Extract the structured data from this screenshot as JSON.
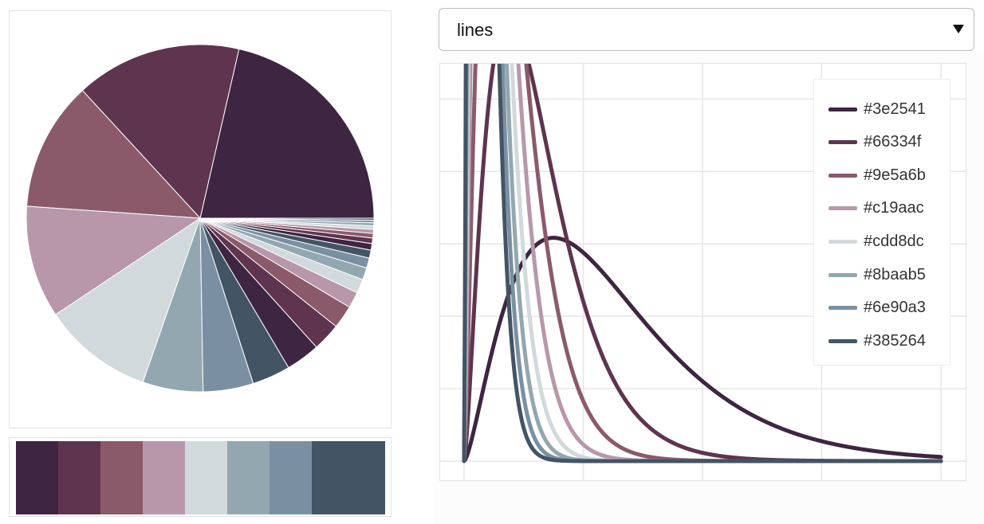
{
  "selector": {
    "value": "lines"
  },
  "palette": [
    "#3e2541",
    "#5e344e",
    "#8b5a6a",
    "#b897aa",
    "#d2d9dc",
    "#93a7b1",
    "#7a90a2",
    "#435464"
  ],
  "chart_data": [
    {
      "type": "pie",
      "title": "",
      "slice_colors": [
        "#3e2541",
        "#5e344e",
        "#8b5a6a",
        "#b897aa",
        "#d2d9dc",
        "#93a7b1",
        "#7a90a2",
        "#435464",
        "#3e2541",
        "#5e344e",
        "#8b5a6a",
        "#b897aa",
        "#d2d9dc",
        "#93a7b1",
        "#7a90a2",
        "#435464",
        "#3e2541",
        "#5e344e",
        "#8b5a6a",
        "#b897aa",
        "#d2d9dc",
        "#93a7b1",
        "#7a90a2",
        "#435464"
      ],
      "values": [
        22.9,
        16.5,
        12.9,
        11.2,
        11.0,
        6.0,
        5.0,
        3.8,
        3.4,
        2.8,
        2.3,
        1.6,
        1.4,
        1.2,
        1.0,
        0.8,
        0.65,
        0.55,
        0.45,
        0.4,
        0.35,
        0.3,
        0.25,
        0.2
      ]
    },
    {
      "type": "line",
      "title": "",
      "xlabel": "",
      "ylabel": "",
      "xlim": [
        0,
        4
      ],
      "ylim": [
        0,
        1.08
      ],
      "grid": true,
      "legend_position": "top-right",
      "series": [
        {
          "name": "#3e2541",
          "color": "#3e2541",
          "k": 2.5,
          "theta": 0.5
        },
        {
          "name": "#66334f",
          "color": "#5e344e",
          "k": 2.5,
          "theta": 0.25
        },
        {
          "name": "#9e5a6b",
          "color": "#8b5a6a",
          "k": 2.5,
          "theta": 0.167
        },
        {
          "name": "#c19aac",
          "color": "#b897aa",
          "k": 2.5,
          "theta": 0.125
        },
        {
          "name": "#cdd8dc",
          "color": "#d2d9dc",
          "k": 2.5,
          "theta": 0.1
        },
        {
          "name": "#8baab5",
          "color": "#93a7b1",
          "k": 2.5,
          "theta": 0.0833
        },
        {
          "name": "#6e90a3",
          "color": "#7a90a2",
          "k": 2.5,
          "theta": 0.0714
        },
        {
          "name": "#385264",
          "color": "#435464",
          "k": 2.5,
          "theta": 0.0625
        }
      ]
    }
  ]
}
